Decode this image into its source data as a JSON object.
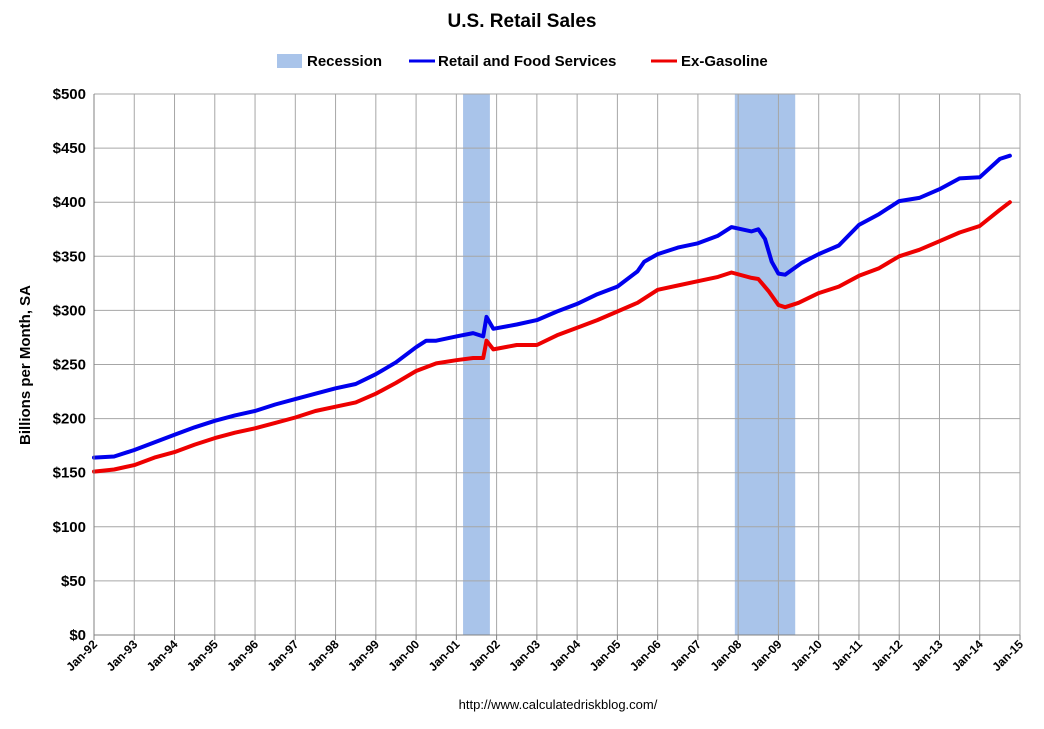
{
  "chart_data": {
    "type": "line",
    "title": "U.S. Retail Sales",
    "ylabel": "Billions per Month, SA",
    "xlabel": "",
    "ylim": [
      0,
      500
    ],
    "xlim": [
      "1992-01",
      "2015-01"
    ],
    "yticks": [
      0,
      50,
      100,
      150,
      200,
      250,
      300,
      350,
      400,
      450,
      500
    ],
    "ytick_labels": [
      "$0",
      "$50",
      "$100",
      "$150",
      "$200",
      "$250",
      "$300",
      "$350",
      "$400",
      "$450",
      "$500"
    ],
    "xtick_labels": [
      "Jan-92",
      "Jan-93",
      "Jan-94",
      "Jan-95",
      "Jan-96",
      "Jan-97",
      "Jan-98",
      "Jan-99",
      "Jan-00",
      "Jan-01",
      "Jan-02",
      "Jan-03",
      "Jan-04",
      "Jan-05",
      "Jan-06",
      "Jan-07",
      "Jan-08",
      "Jan-09",
      "Jan-10",
      "Jan-11",
      "Jan-12",
      "Jan-13",
      "Jan-14",
      "Jan-15"
    ],
    "grid": true,
    "legend_position": "top-center",
    "source": "http://www.calculatedriskblog.com/",
    "recessions": {
      "name": "Recession",
      "color": "#a9c4ea",
      "periods": [
        {
          "start": "2001-03",
          "end": "2001-11"
        },
        {
          "start": "2007-12",
          "end": "2009-06"
        }
      ]
    },
    "series": [
      {
        "name": "Retail and Food Services",
        "color": "#0000ee",
        "points": [
          [
            "1992-01",
            164
          ],
          [
            "1992-07",
            165
          ],
          [
            "1993-01",
            171
          ],
          [
            "1993-07",
            178
          ],
          [
            "1994-01",
            185
          ],
          [
            "1994-07",
            192
          ],
          [
            "1995-01",
            198
          ],
          [
            "1995-07",
            203
          ],
          [
            "1996-01",
            207
          ],
          [
            "1996-07",
            213
          ],
          [
            "1997-01",
            218
          ],
          [
            "1997-07",
            223
          ],
          [
            "1998-01",
            228
          ],
          [
            "1998-07",
            232
          ],
          [
            "1999-01",
            241
          ],
          [
            "1999-07",
            252
          ],
          [
            "2000-01",
            266
          ],
          [
            "2000-04",
            272
          ],
          [
            "2000-07",
            272
          ],
          [
            "2001-01",
            276
          ],
          [
            "2001-06",
            279
          ],
          [
            "2001-09",
            276
          ],
          [
            "2001-10",
            294
          ],
          [
            "2001-12",
            283
          ],
          [
            "2002-07",
            287
          ],
          [
            "2003-01",
            291
          ],
          [
            "2003-07",
            299
          ],
          [
            "2004-01",
            306
          ],
          [
            "2004-07",
            315
          ],
          [
            "2005-01",
            322
          ],
          [
            "2005-07",
            336
          ],
          [
            "2005-09",
            345
          ],
          [
            "2006-01",
            352
          ],
          [
            "2006-07",
            358
          ],
          [
            "2007-01",
            362
          ],
          [
            "2007-07",
            369
          ],
          [
            "2007-11",
            377
          ],
          [
            "2008-05",
            373
          ],
          [
            "2008-07",
            375
          ],
          [
            "2008-09",
            366
          ],
          [
            "2008-11",
            345
          ],
          [
            "2009-01",
            334
          ],
          [
            "2009-03",
            333
          ],
          [
            "2009-08",
            344
          ],
          [
            "2010-01",
            352
          ],
          [
            "2010-07",
            360
          ],
          [
            "2011-01",
            379
          ],
          [
            "2011-07",
            389
          ],
          [
            "2012-01",
            401
          ],
          [
            "2012-07",
            404
          ],
          [
            "2013-01",
            412
          ],
          [
            "2013-07",
            422
          ],
          [
            "2014-01",
            423
          ],
          [
            "2014-07",
            440
          ],
          [
            "2014-10",
            443
          ]
        ]
      },
      {
        "name": "Ex-Gasoline",
        "color": "#ee0000",
        "points": [
          [
            "1992-01",
            151
          ],
          [
            "1992-07",
            153
          ],
          [
            "1993-01",
            157
          ],
          [
            "1993-07",
            164
          ],
          [
            "1994-01",
            169
          ],
          [
            "1994-07",
            176
          ],
          [
            "1995-01",
            182
          ],
          [
            "1995-07",
            187
          ],
          [
            "1996-01",
            191
          ],
          [
            "1996-07",
            196
          ],
          [
            "1997-01",
            201
          ],
          [
            "1997-07",
            207
          ],
          [
            "1998-01",
            211
          ],
          [
            "1998-07",
            215
          ],
          [
            "1999-01",
            223
          ],
          [
            "1999-07",
            233
          ],
          [
            "2000-01",
            244
          ],
          [
            "2000-07",
            251
          ],
          [
            "2001-01",
            254
          ],
          [
            "2001-06",
            256
          ],
          [
            "2001-09",
            256
          ],
          [
            "2001-10",
            272
          ],
          [
            "2001-12",
            264
          ],
          [
            "2002-07",
            268
          ],
          [
            "2003-01",
            268
          ],
          [
            "2003-07",
            277
          ],
          [
            "2004-01",
            284
          ],
          [
            "2004-07",
            291
          ],
          [
            "2005-01",
            299
          ],
          [
            "2005-07",
            307
          ],
          [
            "2006-01",
            319
          ],
          [
            "2006-07",
            323
          ],
          [
            "2007-01",
            327
          ],
          [
            "2007-07",
            331
          ],
          [
            "2007-11",
            335
          ],
          [
            "2008-05",
            330
          ],
          [
            "2008-07",
            329
          ],
          [
            "2008-10",
            318
          ],
          [
            "2009-01",
            305
          ],
          [
            "2009-03",
            303
          ],
          [
            "2009-07",
            307
          ],
          [
            "2010-01",
            316
          ],
          [
            "2010-07",
            322
          ],
          [
            "2011-01",
            332
          ],
          [
            "2011-07",
            339
          ],
          [
            "2012-01",
            350
          ],
          [
            "2012-07",
            356
          ],
          [
            "2013-01",
            364
          ],
          [
            "2013-07",
            372
          ],
          [
            "2014-01",
            378
          ],
          [
            "2014-07",
            393
          ],
          [
            "2014-10",
            400
          ]
        ]
      }
    ]
  }
}
